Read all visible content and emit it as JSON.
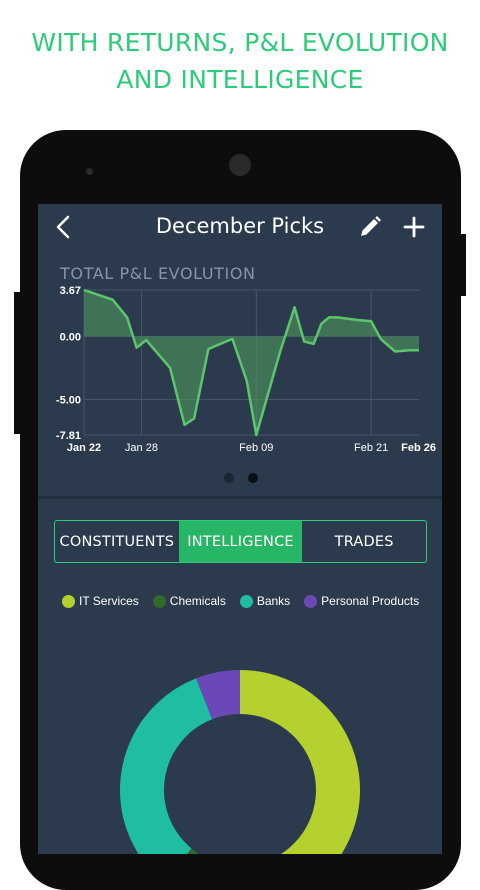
{
  "promo": {
    "line1": "WITH RETURNS, P&L EVOLUTION",
    "line2": "AND INTELLIGENCE",
    "color": "#2ecb7a"
  },
  "appbar": {
    "title": "December Picks",
    "back_icon": "chevron-left-icon",
    "edit_icon": "pencil-icon",
    "add_icon": "plus-icon"
  },
  "pnl_chart_title": "TOTAL P&L EVOLUTION",
  "pager": {
    "pages": 2,
    "active_index": 1
  },
  "tabs": [
    {
      "label": "CONSTITUENTS",
      "active": false
    },
    {
      "label": "INTELLIGENCE",
      "active": true
    },
    {
      "label": "TRADES",
      "active": false
    }
  ],
  "colors": {
    "screen_bg": "#2b3a4c",
    "accent": "#2ecb7a",
    "line": "#5ec46e",
    "fill": "#4f9a5d"
  },
  "chart_data": [
    {
      "type": "area",
      "title": "TOTAL P&L EVOLUTION",
      "y_ticks": [
        "3.67",
        "0.00",
        "-5.00",
        "-7.81"
      ],
      "y_tick_values": [
        3.67,
        0,
        -5,
        -7.81
      ],
      "x_ticks": [
        "Jan 22",
        "Jan 28",
        "Feb 09",
        "Feb 21",
        "Feb 26"
      ],
      "x_tick_values": [
        0,
        6,
        18,
        30,
        35
      ],
      "bold_x_ticks": [
        "Jan 22",
        "Feb 26"
      ],
      "ylim": [
        -7.81,
        3.67
      ],
      "xlim": [
        0,
        35
      ],
      "grid": true,
      "x": [
        0,
        3,
        4.5,
        5.5,
        6.5,
        9,
        10.5,
        11.5,
        13,
        15.5,
        17,
        18,
        20.5,
        22,
        23,
        24,
        24.8,
        25.6,
        26.5,
        28.5,
        30,
        31,
        32.5,
        34,
        35
      ],
      "y": [
        3.67,
        2.9,
        1.5,
        -0.9,
        -0.3,
        -2.5,
        -7.0,
        -6.5,
        -1.0,
        -0.2,
        -3.5,
        -7.81,
        -1.2,
        2.3,
        -0.4,
        -0.6,
        1.0,
        1.5,
        1.5,
        1.3,
        1.2,
        -0.2,
        -1.2,
        -1.1,
        -1.1
      ]
    },
    {
      "type": "pie",
      "donut": true,
      "categories": [
        "IT Services",
        "Chemicals",
        "Banks",
        "Personal Products"
      ],
      "values": [
        50,
        11,
        33,
        6
      ],
      "colors": [
        "#b5d130",
        "#2f6a2b",
        "#1fbea3",
        "#6b47b8"
      ]
    }
  ]
}
